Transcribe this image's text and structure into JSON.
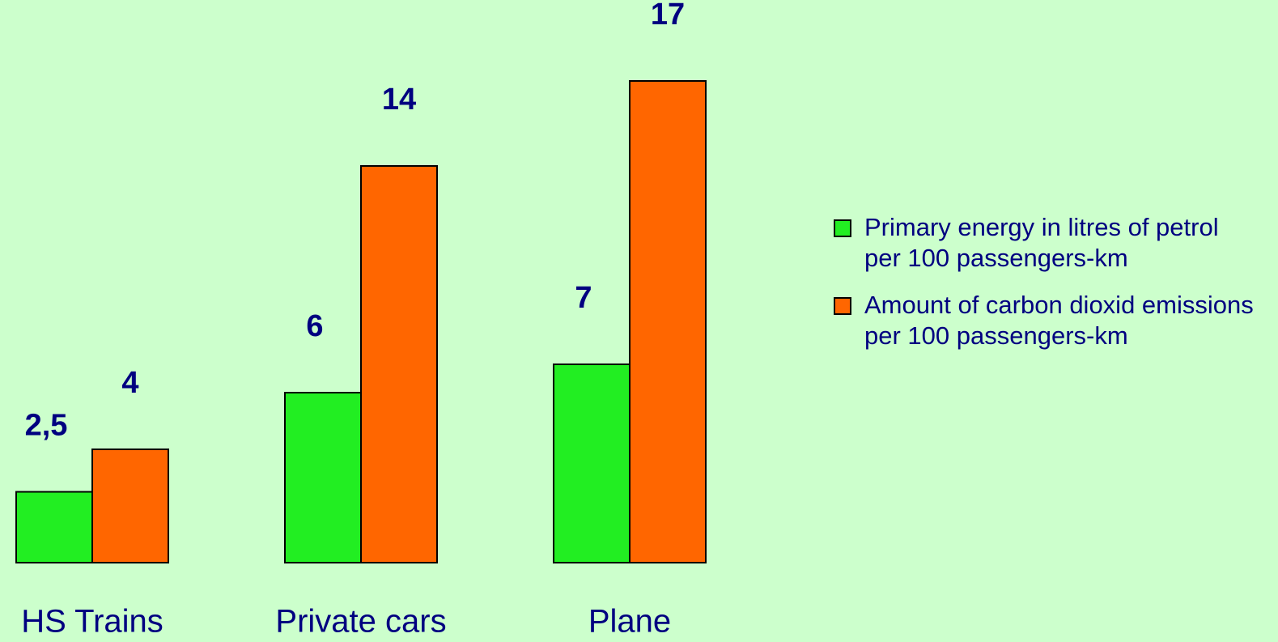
{
  "chart_data": {
    "type": "bar",
    "categories": [
      "HS Trains",
      "Private cars",
      "Plane"
    ],
    "series": [
      {
        "name": "Primary energy in litres of petrol per 100 passengers-km",
        "color": "#22ee22",
        "values": [
          2.5,
          6,
          7
        ],
        "value_labels": [
          "2,5",
          "6",
          "7"
        ]
      },
      {
        "name": "Amount of carbon dioxid emissions per 100 passengers-km",
        "color": "#ff6600",
        "values": [
          4,
          14,
          17
        ]
      }
    ],
    "legend": "right"
  }
}
